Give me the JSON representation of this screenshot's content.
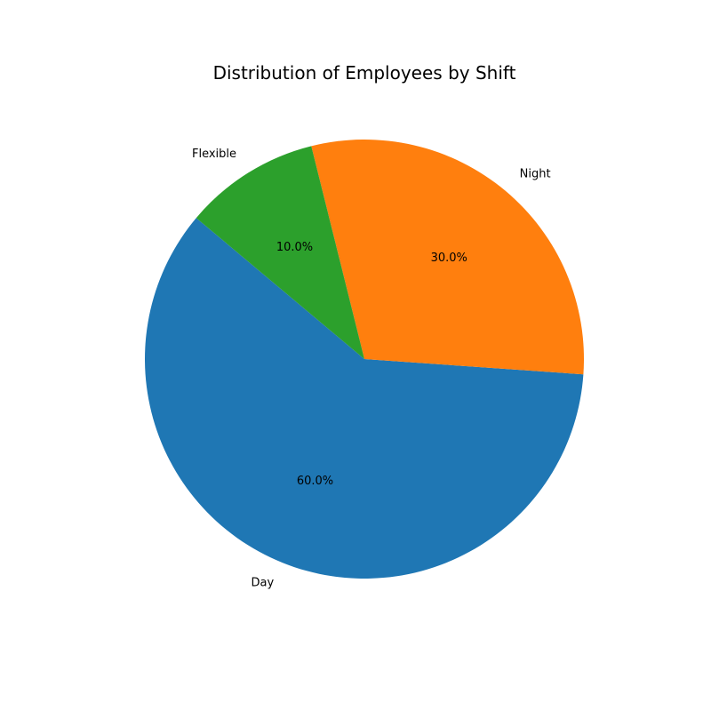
{
  "chart_data": {
    "type": "pie",
    "title": "Distribution of Employees by Shift",
    "categories": [
      "Day",
      "Night",
      "Flexible"
    ],
    "values": [
      60,
      30,
      10
    ],
    "percent_labels": [
      "60.0%",
      "30.0%",
      "10.0%"
    ],
    "colors": [
      "#1f77b4",
      "#ff7f0e",
      "#2ca02c"
    ],
    "start_angle_deg": 140,
    "direction": "counterclockwise",
    "legend": "none"
  }
}
